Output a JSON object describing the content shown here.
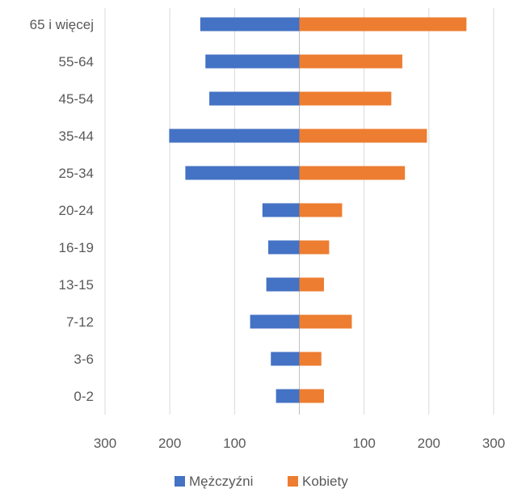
{
  "chart_data": {
    "type": "bar",
    "orientation": "horizontal-diverging",
    "categories": [
      "65 i więcej",
      "55-64",
      "45-54",
      "35-44",
      "25-34",
      "20-24",
      "16-19",
      "13-15",
      "7-12",
      "3-6",
      "0-2"
    ],
    "series": [
      {
        "name": "Mężczyźni",
        "color": "#4472C4",
        "values": [
          153,
          145,
          139,
          201,
          176,
          57,
          48,
          51,
          76,
          44,
          36
        ]
      },
      {
        "name": "Kobiety",
        "color": "#ED7D31",
        "values": [
          258,
          159,
          142,
          197,
          163,
          66,
          46,
          38,
          81,
          34,
          38
        ]
      }
    ],
    "x_axis": {
      "range": [
        -300,
        300
      ],
      "ticks": [
        -300,
        -200,
        -100,
        0,
        100,
        200,
        300
      ],
      "tick_labels": [
        "300",
        "200",
        "100",
        "",
        "100",
        "200",
        "300"
      ]
    },
    "grid": true,
    "legend_position": "bottom"
  }
}
